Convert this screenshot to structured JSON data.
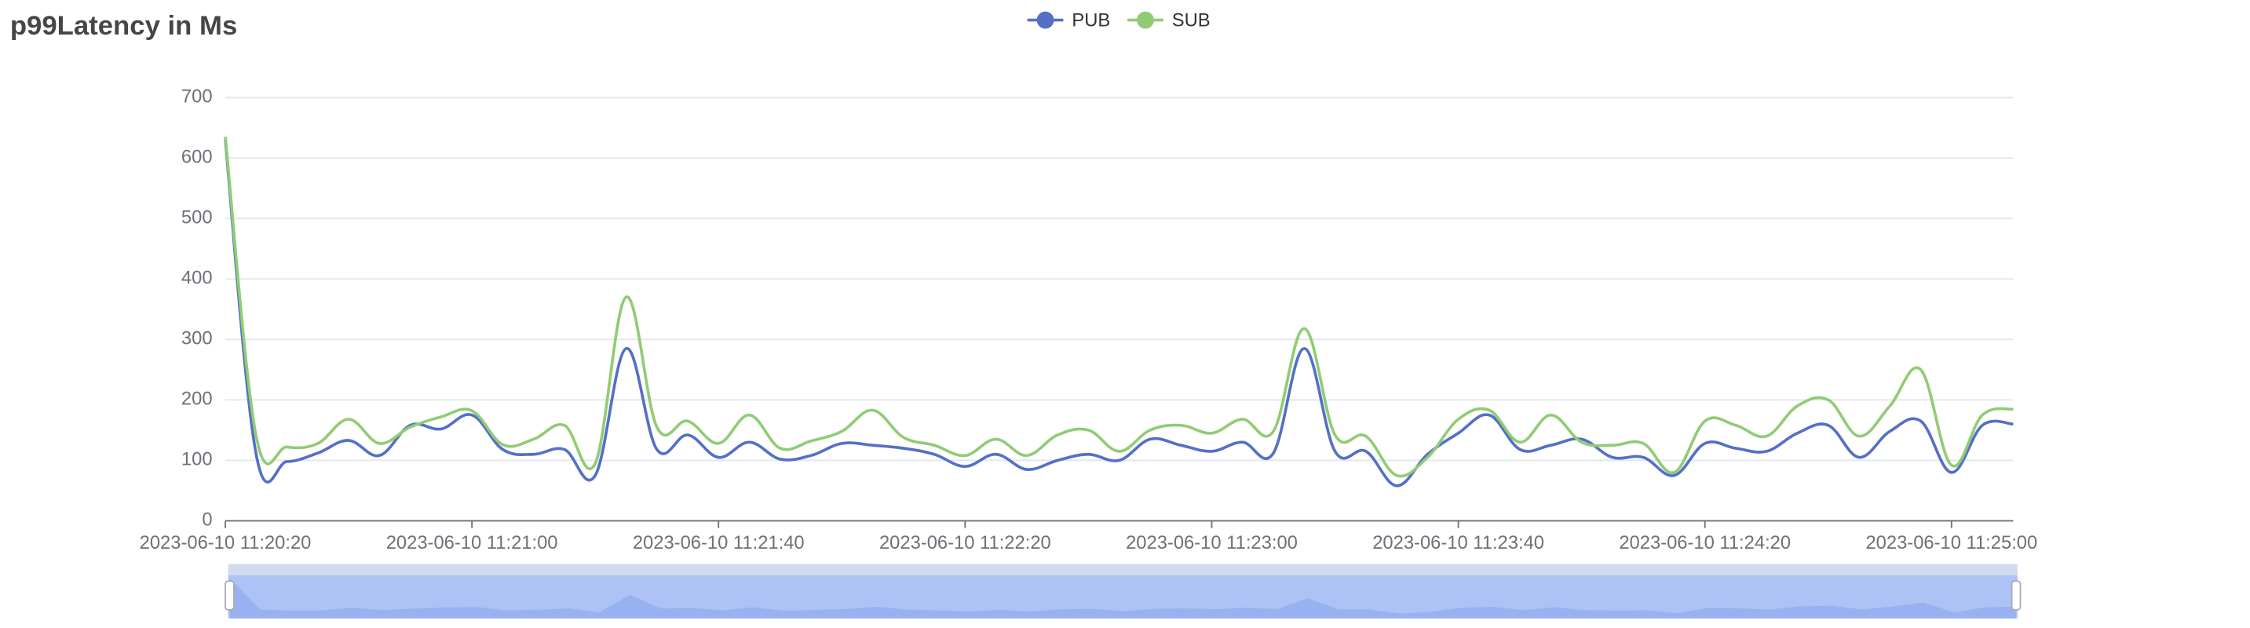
{
  "chart_data": {
    "type": "line",
    "title": "p99Latency in Ms",
    "x": [
      "2023-06-10 11:20:20",
      "2023-06-10 11:20:25",
      "2023-06-10 11:20:30",
      "2023-06-10 11:20:35",
      "2023-06-10 11:20:40",
      "2023-06-10 11:20:45",
      "2023-06-10 11:20:50",
      "2023-06-10 11:20:55",
      "2023-06-10 11:21:00",
      "2023-06-10 11:21:05",
      "2023-06-10 11:21:10",
      "2023-06-10 11:21:15",
      "2023-06-10 11:21:20",
      "2023-06-10 11:21:25",
      "2023-06-10 11:21:30",
      "2023-06-10 11:21:35",
      "2023-06-10 11:21:40",
      "2023-06-10 11:21:45",
      "2023-06-10 11:21:50",
      "2023-06-10 11:21:55",
      "2023-06-10 11:22:00",
      "2023-06-10 11:22:05",
      "2023-06-10 11:22:10",
      "2023-06-10 11:22:15",
      "2023-06-10 11:22:20",
      "2023-06-10 11:22:25",
      "2023-06-10 11:22:30",
      "2023-06-10 11:22:35",
      "2023-06-10 11:22:40",
      "2023-06-10 11:22:45",
      "2023-06-10 11:22:50",
      "2023-06-10 11:22:55",
      "2023-06-10 11:23:00",
      "2023-06-10 11:23:05",
      "2023-06-10 11:23:10",
      "2023-06-10 11:23:15",
      "2023-06-10 11:23:20",
      "2023-06-10 11:23:25",
      "2023-06-10 11:23:30",
      "2023-06-10 11:23:35",
      "2023-06-10 11:23:40",
      "2023-06-10 11:23:45",
      "2023-06-10 11:23:50",
      "2023-06-10 11:23:55",
      "2023-06-10 11:24:00",
      "2023-06-10 11:24:05",
      "2023-06-10 11:24:10",
      "2023-06-10 11:24:15",
      "2023-06-10 11:24:20",
      "2023-06-10 11:24:25",
      "2023-06-10 11:24:30",
      "2023-06-10 11:24:35",
      "2023-06-10 11:24:40",
      "2023-06-10 11:24:45",
      "2023-06-10 11:24:50",
      "2023-06-10 11:24:55",
      "2023-06-10 11:25:00",
      "2023-06-10 11:25:05",
      "2023-06-10 11:25:10"
    ],
    "series": [
      {
        "name": "PUB",
        "color": "#5470c6",
        "values": [
          630,
          110,
          98,
          112,
          133,
          108,
          158,
          152,
          175,
          118,
          110,
          118,
          75,
          285,
          118,
          142,
          105,
          130,
          102,
          108,
          128,
          125,
          120,
          110,
          90,
          110,
          85,
          100,
          110,
          100,
          135,
          125,
          115,
          130,
          112,
          285,
          115,
          115,
          58,
          110,
          145,
          175,
          118,
          125,
          135,
          105,
          105,
          75,
          128,
          120,
          115,
          145,
          158,
          105,
          148,
          165,
          80,
          158,
          160
        ]
      },
      {
        "name": "SUB",
        "color": "#91cc75",
        "values": [
          635,
          140,
          122,
          128,
          168,
          128,
          155,
          172,
          182,
          126,
          135,
          158,
          95,
          370,
          155,
          165,
          128,
          175,
          120,
          132,
          148,
          183,
          138,
          125,
          108,
          135,
          108,
          142,
          150,
          115,
          150,
          158,
          145,
          168,
          148,
          318,
          142,
          140,
          75,
          105,
          168,
          183,
          130,
          175,
          130,
          125,
          128,
          80,
          165,
          158,
          140,
          190,
          200,
          140,
          190,
          250,
          92,
          175,
          185
        ]
      }
    ],
    "xlim": [
      "2023-06-10 11:20:20",
      "2023-06-10 11:25:10"
    ],
    "xticks": [
      "2023-06-10 11:20:20",
      "2023-06-10 11:21:00",
      "2023-06-10 11:21:40",
      "2023-06-10 11:22:20",
      "2023-06-10 11:23:00",
      "2023-06-10 11:23:40",
      "2023-06-10 11:24:20",
      "2023-06-10 11:25:00"
    ],
    "ylim": [
      0,
      700
    ],
    "yticks": [
      0,
      100,
      200,
      300,
      400,
      500,
      600,
      700
    ],
    "grid": true
  }
}
